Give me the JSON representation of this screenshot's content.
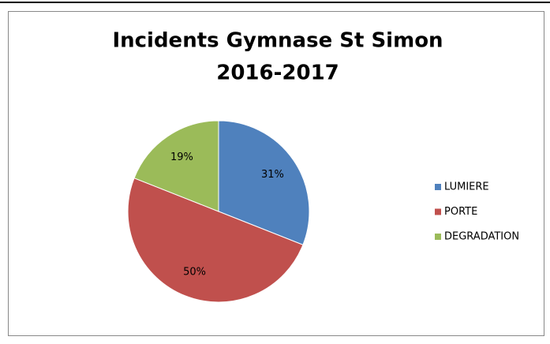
{
  "chart_data": {
    "type": "pie",
    "title": [
      "Incidents Gymnase St Simon",
      "2016-2017"
    ],
    "categories": [
      "LUMIERE",
      "PORTE",
      "DEGRADATION"
    ],
    "values": [
      31,
      50,
      19
    ],
    "value_labels": [
      "31%",
      "50%",
      "19%"
    ],
    "colors": [
      "#4f81bd",
      "#c0504d",
      "#9bbb59"
    ],
    "legend": "right"
  }
}
